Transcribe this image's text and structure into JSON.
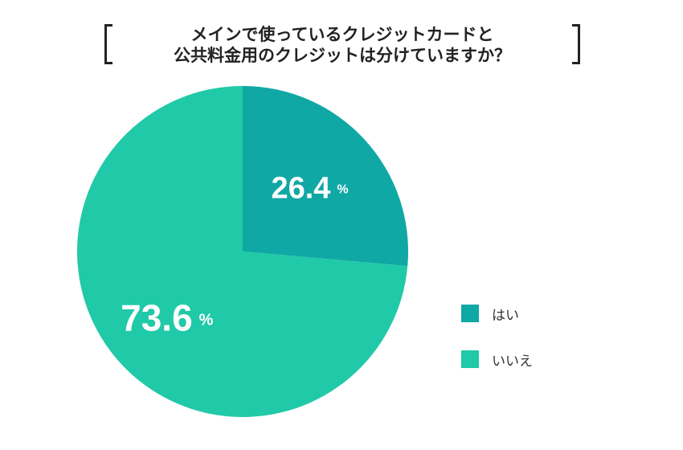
{
  "chart_data": {
    "type": "pie",
    "title_lines": [
      "メインで使っているクレジットカードと",
      "公共料金用のクレジットは分けていますか？"
    ],
    "slices": [
      {
        "label": "はい",
        "value": 26.4,
        "value_text": "26.4",
        "color": "#0fa8a5"
      },
      {
        "label": "いいえ",
        "value": 73.6,
        "value_text": "73.6",
        "color": "#20c9a7"
      }
    ],
    "unit": "%",
    "start_angle_deg": 0,
    "direction": "clockwise",
    "legend_position": "right"
  }
}
